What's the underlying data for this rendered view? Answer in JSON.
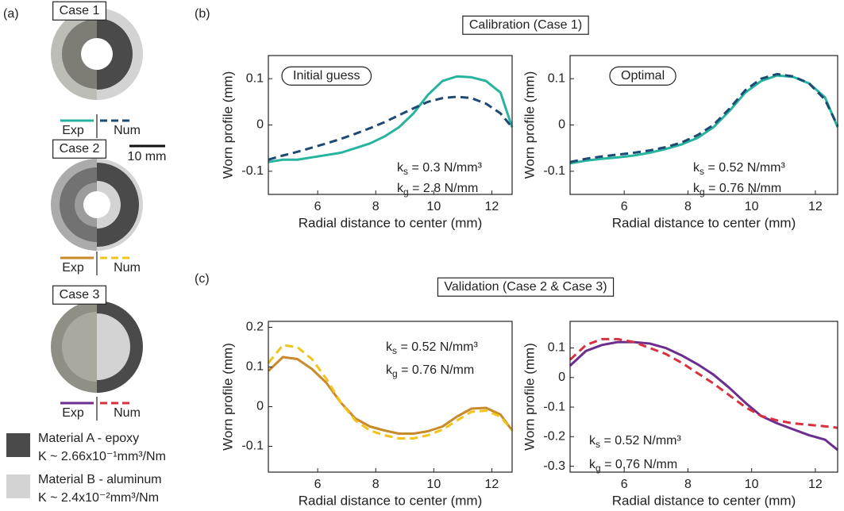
{
  "figure": {
    "panel_labels": [
      "(a)",
      "(b)",
      "(c)"
    ],
    "section_titles": [
      "Calibration (Case 1)",
      "Validation (Case 2 & Case 3)"
    ],
    "cases": [
      {
        "label": "Case 1",
        "exp_label": "Exp",
        "num_label": "Num",
        "exp_color": "#26b3a0",
        "num_color": "#1d4a72"
      },
      {
        "label": "Case 2",
        "exp_label": "Exp",
        "num_label": "Num",
        "exp_color": "#c98a2a",
        "num_color": "#f2c318"
      },
      {
        "label": "Case 3",
        "exp_label": "Exp",
        "num_label": "Num",
        "exp_color": "#6b2d8e",
        "num_color": "#d8303f"
      }
    ],
    "scale_bar": "10 mm",
    "materials": [
      {
        "name": "Material A - epoxy",
        "property": "K ~ 2.66x10⁻¹mm³/Nm",
        "color": "#4a4a4a"
      },
      {
        "name": "Material B - aluminum",
        "property": "K ~ 2.4x10⁻²mm³/Nm",
        "color": "#d3d3d3"
      }
    ]
  },
  "chart_data": [
    {
      "type": "line",
      "xlabel": "Radial distance to center (mm)",
      "ylabel": "Worn profile (mm)",
      "note": "Initial guess",
      "parameters": [
        {
          "symbol": "k",
          "sub": "s",
          "rest": " = 0.3 N/mm³"
        },
        {
          "symbol": "k",
          "sub": "g",
          "rest": " = 2.8 N/mm"
        }
      ],
      "x": [
        4.3,
        4.8,
        5.3,
        5.8,
        6.3,
        6.8,
        7.3,
        7.8,
        8.3,
        8.8,
        9.3,
        9.8,
        10.3,
        10.8,
        11.3,
        11.8,
        12.3,
        12.7
      ],
      "xlim": [
        4.3,
        12.7
      ],
      "xticks": [
        6,
        8,
        10,
        12
      ],
      "ylim": [
        -0.15,
        0.15
      ],
      "yticks": [
        -0.1,
        0,
        0.1
      ],
      "series": [
        {
          "color": "#26b3a0",
          "dashed": false,
          "values": [
            -0.08,
            -0.075,
            -0.075,
            -0.07,
            -0.065,
            -0.06,
            -0.05,
            -0.04,
            -0.025,
            -0.005,
            0.025,
            0.065,
            0.095,
            0.105,
            0.103,
            0.095,
            0.07,
            -0.005
          ]
        },
        {
          "color": "#1d4a72",
          "dashed": true,
          "values": [
            -0.075,
            -0.066,
            -0.058,
            -0.049,
            -0.04,
            -0.03,
            -0.019,
            -0.007,
            0.006,
            0.021,
            0.036,
            0.05,
            0.058,
            0.061,
            0.058,
            0.046,
            0.025,
            -0.005
          ]
        }
      ]
    },
    {
      "type": "line",
      "xlabel": "Radial distance to center (mm)",
      "ylabel": "Worn profile (mm)",
      "note": "Optimal",
      "parameters": [
        {
          "symbol": "k",
          "sub": "s",
          "rest": " = 0.52 N/mm³"
        },
        {
          "symbol": "k",
          "sub": "g",
          "rest": " = 0.76 N/mm"
        }
      ],
      "x": [
        4.3,
        4.8,
        5.3,
        5.8,
        6.3,
        6.8,
        7.3,
        7.8,
        8.3,
        8.8,
        9.3,
        9.8,
        10.3,
        10.8,
        11.3,
        11.8,
        12.3,
        12.7
      ],
      "xlim": [
        4.3,
        12.7
      ],
      "xticks": [
        6,
        8,
        10,
        12
      ],
      "ylim": [
        -0.15,
        0.15
      ],
      "yticks": [
        -0.1,
        0,
        0.1
      ],
      "series": [
        {
          "color": "#26b3a0",
          "dashed": false,
          "values": [
            -0.083,
            -0.077,
            -0.073,
            -0.07,
            -0.066,
            -0.06,
            -0.052,
            -0.042,
            -0.028,
            -0.005,
            0.03,
            0.07,
            0.095,
            0.107,
            0.104,
            0.09,
            0.06,
            -0.005
          ]
        },
        {
          "color": "#1d4a72",
          "dashed": true,
          "values": [
            -0.08,
            -0.073,
            -0.068,
            -0.064,
            -0.06,
            -0.055,
            -0.048,
            -0.038,
            -0.022,
            0.0,
            0.035,
            0.075,
            0.1,
            0.11,
            0.105,
            0.09,
            0.055,
            -0.002
          ]
        }
      ]
    },
    {
      "type": "line",
      "xlabel": "Radial distance to center (mm)",
      "ylabel": "Worn profile (mm)",
      "parameters": [
        {
          "symbol": "k",
          "sub": "s",
          "rest": " = 0.52 N/mm³"
        },
        {
          "symbol": "k",
          "sub": "g",
          "rest": " = 0.76 N/mm"
        }
      ],
      "x": [
        4.3,
        4.8,
        5.3,
        5.8,
        6.3,
        6.8,
        7.3,
        7.8,
        8.3,
        8.8,
        9.3,
        9.8,
        10.3,
        10.8,
        11.3,
        11.8,
        12.3,
        12.7
      ],
      "xlim": [
        4.3,
        12.7
      ],
      "xticks": [
        6,
        8,
        10,
        12
      ],
      "ylim": [
        -0.165,
        0.215
      ],
      "yticks": [
        -0.1,
        0,
        0.1,
        0.2
      ],
      "series": [
        {
          "color": "#c98a2a",
          "dashed": false,
          "values": [
            0.09,
            0.125,
            0.12,
            0.095,
            0.06,
            0.01,
            -0.03,
            -0.05,
            -0.06,
            -0.068,
            -0.068,
            -0.062,
            -0.05,
            -0.025,
            -0.005,
            -0.003,
            -0.02,
            -0.06
          ]
        },
        {
          "color": "#f2c318",
          "dashed": true,
          "values": [
            0.11,
            0.155,
            0.15,
            0.12,
            0.07,
            0.01,
            -0.035,
            -0.06,
            -0.072,
            -0.08,
            -0.08,
            -0.072,
            -0.058,
            -0.035,
            -0.013,
            -0.01,
            -0.025,
            -0.06
          ]
        }
      ]
    },
    {
      "type": "line",
      "xlabel": "Radial distance to center (mm)",
      "ylabel": "Worn profile (mm)",
      "parameters": [
        {
          "symbol": "k",
          "sub": "s",
          "rest": " = 0.52 N/mm³"
        },
        {
          "symbol": "k",
          "sub": "g",
          "rest": " = 0.76 N/mm"
        }
      ],
      "x": [
        4.3,
        4.8,
        5.3,
        5.8,
        6.3,
        6.8,
        7.3,
        7.8,
        8.3,
        8.8,
        9.3,
        9.8,
        10.3,
        10.8,
        11.3,
        11.8,
        12.3,
        12.7
      ],
      "xlim": [
        4.3,
        12.7
      ],
      "xticks": [
        6,
        8,
        10,
        12
      ],
      "ylim": [
        -0.32,
        0.19
      ],
      "yticks": [
        -0.3,
        -0.2,
        -0.1,
        0,
        0.1
      ],
      "series": [
        {
          "color": "#6b2d8e",
          "dashed": false,
          "values": [
            0.04,
            0.09,
            0.11,
            0.12,
            0.12,
            0.115,
            0.1,
            0.075,
            0.045,
            0.01,
            -0.035,
            -0.085,
            -0.13,
            -0.155,
            -0.175,
            -0.195,
            -0.21,
            -0.245
          ]
        },
        {
          "color": "#d8303f",
          "dashed": true,
          "values": [
            0.06,
            0.11,
            0.13,
            0.13,
            0.12,
            0.1,
            0.08,
            0.05,
            0.015,
            -0.02,
            -0.06,
            -0.1,
            -0.13,
            -0.145,
            -0.155,
            -0.16,
            -0.165,
            -0.17
          ]
        }
      ]
    }
  ]
}
